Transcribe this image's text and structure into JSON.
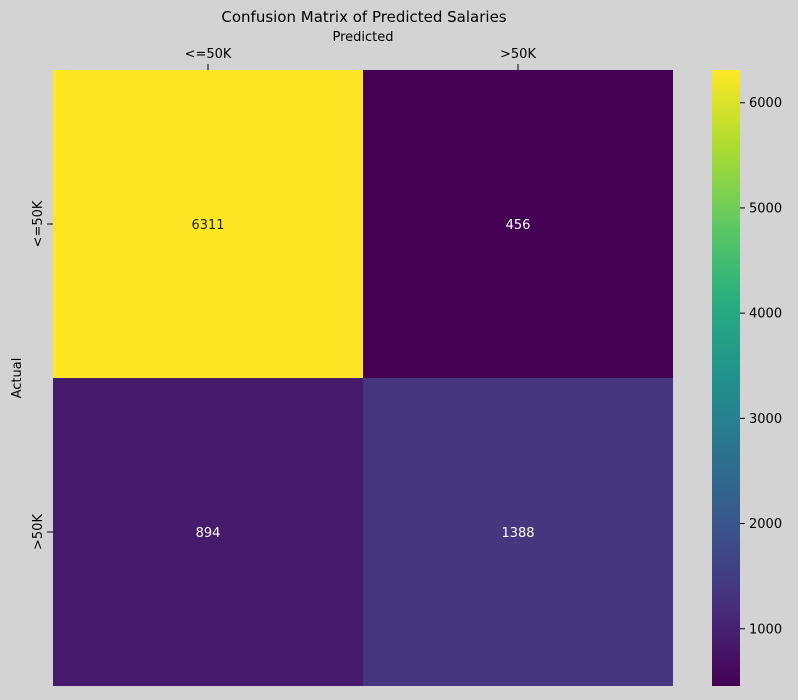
{
  "chart_data": {
    "type": "heatmap",
    "title": "Confusion Matrix of Predicted Salaries",
    "xlabel": "Predicted",
    "ylabel": "Actual",
    "x_categories": [
      "<=50K",
      ">50K"
    ],
    "y_categories": [
      "<=50K",
      ">50K"
    ],
    "values": [
      [
        6311,
        456
      ],
      [
        894,
        1388
      ]
    ],
    "x_axis_position": "top",
    "colormap": "viridis",
    "colorbar": {
      "min": 456,
      "max": 6311,
      "ticks": [
        1000,
        2000,
        3000,
        4000,
        5000,
        6000
      ]
    },
    "background_color": "#d3d3d3",
    "cell_text_colors": {
      "light_cell": "#262626",
      "dark_cell": "#ffffff"
    }
  }
}
